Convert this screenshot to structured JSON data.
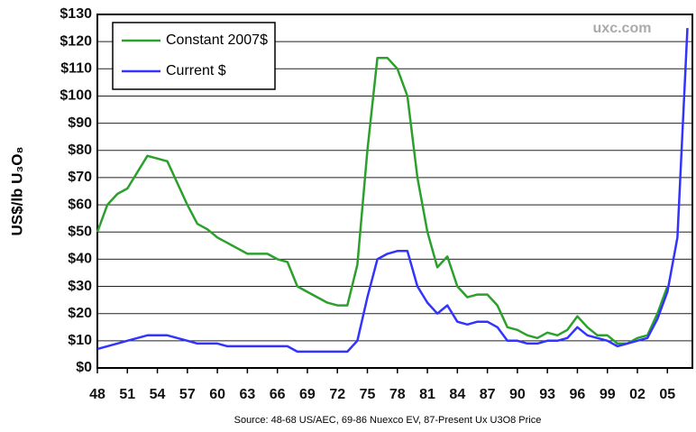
{
  "chart_data": {
    "type": "line",
    "y_label": "US$/lb U₃O₈",
    "annotations": [
      "uxc.com",
      "Source: 48-68 US/AEC, 69-86 Nuexco EV, 87-Present Ux U3O8 Price"
    ],
    "x": [
      1948,
      1949,
      1950,
      1951,
      1952,
      1953,
      1954,
      1955,
      1956,
      1957,
      1958,
      1959,
      1960,
      1961,
      1962,
      1963,
      1964,
      1965,
      1966,
      1967,
      1968,
      1969,
      1970,
      1971,
      1972,
      1973,
      1974,
      1975,
      1976,
      1977,
      1978,
      1979,
      1980,
      1981,
      1982,
      1983,
      1984,
      1985,
      1986,
      1987,
      1988,
      1989,
      1990,
      1991,
      1992,
      1993,
      1994,
      1995,
      1996,
      1997,
      1998,
      1999,
      2000,
      2001,
      2002,
      2003,
      2004,
      2005,
      2006,
      2007
    ],
    "series": [
      {
        "name": "Constant 2007$",
        "color": "#2ca02c",
        "values": [
          50,
          60,
          64,
          66,
          72,
          78,
          77,
          76,
          68,
          60,
          53,
          51,
          48,
          46,
          44,
          42,
          42,
          42,
          40,
          39,
          30,
          28,
          26,
          24,
          23,
          23,
          38,
          80,
          114,
          114,
          110,
          100,
          70,
          50,
          37,
          41,
          30,
          26,
          27,
          27,
          23,
          15,
          14,
          12,
          11,
          13,
          12,
          14,
          19,
          15,
          12,
          12,
          9,
          9,
          11,
          12,
          20,
          30,
          null,
          null
        ]
      },
      {
        "name": "Current $",
        "color": "#3333ff",
        "values": [
          7,
          8,
          9,
          10,
          11,
          12,
          12,
          12,
          11,
          10,
          9,
          9,
          9,
          8,
          8,
          8,
          8,
          8,
          8,
          8,
          6,
          6,
          6,
          6,
          6,
          6,
          10,
          26,
          40,
          42,
          43,
          43,
          30,
          24,
          20,
          23,
          17,
          16,
          17,
          17,
          15,
          10,
          10,
          9,
          9,
          10,
          10,
          11,
          15,
          12,
          11,
          10,
          8,
          9,
          10,
          11,
          18,
          28,
          48,
          125
        ]
      }
    ],
    "xlim": [
      1948,
      2007.5
    ],
    "xticks": [
      {
        "value": 1948,
        "label": "48"
      },
      {
        "value": 1951,
        "label": "51"
      },
      {
        "value": 1954,
        "label": "54"
      },
      {
        "value": 1957,
        "label": "57"
      },
      {
        "value": 1960,
        "label": "60"
      },
      {
        "value": 1963,
        "label": "63"
      },
      {
        "value": 1966,
        "label": "66"
      },
      {
        "value": 1969,
        "label": "69"
      },
      {
        "value": 1972,
        "label": "72"
      },
      {
        "value": 1975,
        "label": "75"
      },
      {
        "value": 1978,
        "label": "78"
      },
      {
        "value": 1981,
        "label": "81"
      },
      {
        "value": 1984,
        "label": "84"
      },
      {
        "value": 1987,
        "label": "87"
      },
      {
        "value": 1990,
        "label": "90"
      },
      {
        "value": 1993,
        "label": "93"
      },
      {
        "value": 1996,
        "label": "96"
      },
      {
        "value": 1999,
        "label": "99"
      },
      {
        "value": 2002,
        "label": "02"
      },
      {
        "value": 2005,
        "label": "05"
      }
    ],
    "ylim": [
      0,
      130
    ],
    "yticks": [
      {
        "value": 0,
        "label": "$0"
      },
      {
        "value": 10,
        "label": "$10"
      },
      {
        "value": 20,
        "label": "$20"
      },
      {
        "value": 30,
        "label": "$30"
      },
      {
        "value": 40,
        "label": "$40"
      },
      {
        "value": 50,
        "label": "$50"
      },
      {
        "value": 60,
        "label": "$60"
      },
      {
        "value": 70,
        "label": "$70"
      },
      {
        "value": 80,
        "label": "$80"
      },
      {
        "value": 90,
        "label": "$90"
      },
      {
        "value": 100,
        "label": "$100"
      },
      {
        "value": 110,
        "label": "$110"
      },
      {
        "value": 120,
        "label": "$120"
      },
      {
        "value": 130,
        "label": "$130"
      }
    ],
    "grid": true,
    "legend": "upper left"
  }
}
